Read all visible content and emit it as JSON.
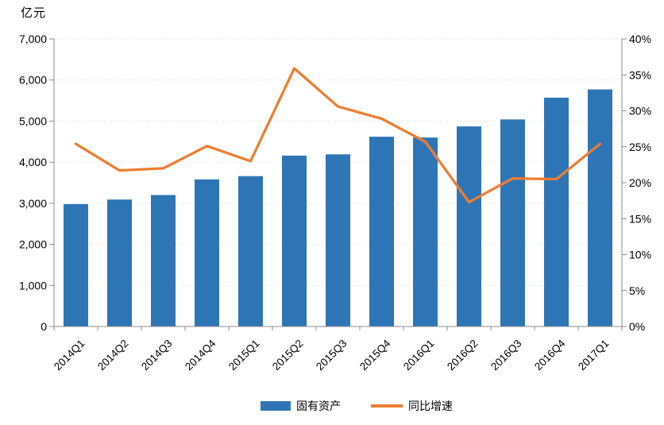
{
  "chart_data": {
    "type": "bar+line",
    "title": "",
    "unit_label": "亿元",
    "categories": [
      "2014Q1",
      "2014Q2",
      "2014Q3",
      "2014Q4",
      "2015Q1",
      "2015Q2",
      "2015Q3",
      "2015Q4",
      "2016Q1",
      "2016Q2",
      "2016Q3",
      "2016Q4",
      "2017Q1"
    ],
    "series": [
      {
        "name": "固有资产",
        "type": "bar",
        "axis": "left",
        "color": "#2E75B6",
        "values": [
          2980,
          3090,
          3200,
          3580,
          3660,
          4160,
          4190,
          4620,
          4600,
          4870,
          5040,
          5570,
          5770
        ]
      },
      {
        "name": "同比增速",
        "type": "line",
        "axis": "right",
        "color": "#ED7D31",
        "values": [
          25.4,
          21.7,
          22.0,
          25.1,
          23.0,
          35.9,
          30.6,
          28.9,
          25.7,
          17.3,
          20.6,
          20.5,
          25.4
        ]
      }
    ],
    "left_axis": {
      "min": 0,
      "max": 7000,
      "step": 1000,
      "tick_labels": [
        "0",
        "1,000",
        "2,000",
        "3,000",
        "4,000",
        "5,000",
        "6,000",
        "7,000"
      ]
    },
    "right_axis": {
      "min": 0,
      "max": 40,
      "step": 5,
      "tick_labels": [
        "0%",
        "5%",
        "10%",
        "15%",
        "20%",
        "25%",
        "30%",
        "35%",
        "40%"
      ]
    },
    "grid": true,
    "legend_position": "bottom",
    "style": {
      "grid_color": "#D9D9D9",
      "axis_color": "#8C8C8C",
      "text_color": "#000000",
      "background": "#FFFFFF"
    }
  }
}
